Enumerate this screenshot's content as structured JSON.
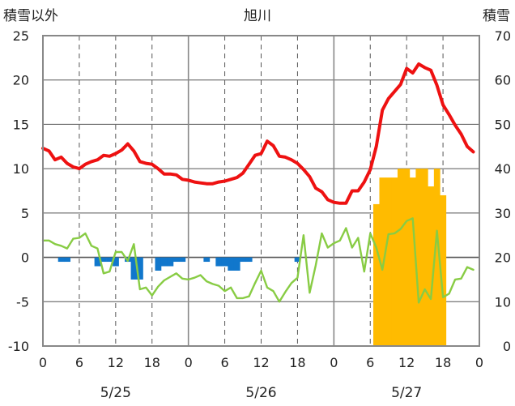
{
  "chart_data": {
    "type": "line",
    "title": "旭川",
    "left_axis_label": "積雪以外",
    "right_axis_label": "積雪",
    "left_ylim": [
      -10,
      25
    ],
    "left_ticks": [
      -10,
      -5,
      0,
      5,
      10,
      15,
      20,
      25
    ],
    "right_ylim": [
      0,
      70
    ],
    "right_ticks": [
      0,
      10,
      20,
      30,
      40,
      50,
      60,
      70
    ],
    "xlim": [
      0,
      72
    ],
    "x_tick_positions": [
      0,
      6,
      12,
      18,
      24,
      30,
      36,
      42,
      48,
      54,
      60,
      66,
      72
    ],
    "x_tick_labels": [
      "0",
      "6",
      "12",
      "18",
      "0",
      "6",
      "12",
      "18",
      "0",
      "6",
      "12",
      "18",
      "0"
    ],
    "date_labels": [
      {
        "x": 12,
        "label": "5/25"
      },
      {
        "x": 36,
        "label": "5/26"
      },
      {
        "x": 60,
        "label": "5/27"
      }
    ],
    "grid": true,
    "colors": {
      "temperature": "#ee1111",
      "green_series": "#88cc44",
      "precipitation": "#1177cc",
      "snow_depth": "#ffbb00",
      "axis": "#888888",
      "grid": "#555555"
    },
    "series": [
      {
        "axis": "left",
        "kind": "line",
        "color": "#ee1111",
        "x": [
          0,
          1,
          2,
          3,
          4,
          5,
          6,
          7,
          8,
          9,
          10,
          11,
          12,
          13,
          14,
          15,
          16,
          17,
          18,
          19,
          20,
          21,
          22,
          23,
          24,
          25,
          26,
          27,
          28,
          29,
          30,
          31,
          32,
          33,
          34,
          35,
          36,
          37,
          38,
          39,
          40,
          41,
          42,
          43,
          44,
          45,
          46,
          47,
          48,
          49,
          50,
          51,
          52,
          53,
          54,
          55,
          56,
          57,
          58,
          59,
          60,
          61,
          62,
          63,
          64,
          65,
          66,
          67,
          68,
          69,
          70,
          71
        ],
        "values": [
          12.3,
          12,
          11,
          11.3,
          10.6,
          10.2,
          10,
          10.5,
          10.8,
          11,
          11.5,
          11.4,
          11.7,
          12.1,
          12.8,
          12,
          10.8,
          10.6,
          10.5,
          10,
          9.4,
          9.4,
          9.3,
          8.8,
          8.7,
          8.5,
          8.4,
          8.3,
          8.3,
          8.5,
          8.6,
          8.8,
          9,
          9.5,
          10.5,
          11.5,
          11.7,
          13.1,
          12.6,
          11.4,
          11.3,
          11,
          10.6,
          9.9,
          9.1,
          7.8,
          7.4,
          6.5,
          6.2,
          6.1,
          6.1,
          7.5,
          7.5,
          8.5,
          9.9,
          12.5,
          16.6,
          17.9,
          18.7,
          19.5,
          21.3,
          20.8,
          21.8,
          21.4,
          21.1,
          19.4,
          17.2,
          16.1,
          14.9,
          13.9,
          12.5,
          11.9
        ]
      },
      {
        "axis": "left",
        "kind": "line",
        "color": "#88cc44",
        "x": [
          0,
          1,
          2,
          3,
          4,
          5,
          6,
          7,
          8,
          9,
          10,
          11,
          12,
          13,
          14,
          15,
          16,
          17,
          18,
          19,
          20,
          21,
          22,
          23,
          24,
          25,
          26,
          27,
          28,
          29,
          30,
          31,
          32,
          33,
          34,
          35,
          36,
          37,
          38,
          39,
          40,
          41,
          42,
          43,
          44,
          45,
          46,
          47,
          48,
          49,
          50,
          51,
          52,
          53,
          54,
          55,
          56,
          57,
          58,
          59,
          60,
          61,
          62,
          63,
          64,
          65,
          66,
          67,
          68,
          69,
          70,
          71
        ],
        "values": [
          1.9,
          1.9,
          1.5,
          1.3,
          1,
          2.1,
          2.2,
          2.7,
          1.3,
          1,
          -1.8,
          -1.6,
          0.6,
          0.6,
          -0.4,
          1.5,
          -3.6,
          -3.4,
          -4.3,
          -3.3,
          -2.6,
          -2.2,
          -1.8,
          -2.4,
          -2.5,
          -2.3,
          -2,
          -2.7,
          -3,
          -3.2,
          -3.8,
          -3.4,
          -4.6,
          -4.6,
          -4.4,
          -2.9,
          -1.5,
          -3.4,
          -3.8,
          -5,
          -3.9,
          -2.9,
          -2.3,
          2.5,
          -4,
          -0.9,
          2.7,
          1.1,
          1.6,
          1.9,
          3.3,
          1.1,
          2.2,
          -1.6,
          2.7,
          1.1,
          -1.4,
          2.6,
          2.7,
          3.2,
          4.1,
          4.4,
          -5.1,
          -3.6,
          -4.7,
          3,
          -4.5,
          -4.1,
          -2.5,
          -2.4,
          -1.1,
          -1.4
        ]
      },
      {
        "axis": "left",
        "kind": "bar",
        "color": "#1177cc",
        "x": [
          3,
          4,
          9,
          10,
          11,
          12,
          14,
          15,
          16,
          19,
          20,
          21,
          22,
          23,
          27,
          29,
          30,
          31,
          32,
          33,
          34,
          42
        ],
        "values": [
          -0.5,
          -0.5,
          -1,
          -0.5,
          -0.5,
          -1,
          -0.5,
          -2.5,
          -2.5,
          -1.5,
          -1,
          -1,
          -0.5,
          -0.5,
          -0.5,
          -1,
          -1,
          -1.5,
          -1.5,
          -0.5,
          -0.5,
          -0.5
        ]
      },
      {
        "axis": "right",
        "kind": "bar",
        "color": "#ffbb00",
        "x": [
          55,
          56,
          57,
          58,
          59,
          60,
          61,
          62,
          63,
          64,
          65,
          66,
          67
        ],
        "values": [
          32,
          38,
          38,
          38,
          40,
          40,
          38,
          40,
          40,
          36,
          40,
          34,
          0
        ]
      }
    ]
  }
}
